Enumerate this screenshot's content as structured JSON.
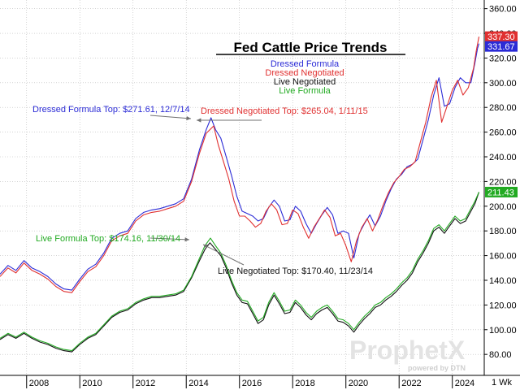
{
  "chart_data": {
    "type": "line",
    "title": "Fed Cattle Price Trends",
    "xlabel": "",
    "ylabel": "",
    "xlim": [
      2007.0,
      2025.2
    ],
    "ylim": [
      63,
      367
    ],
    "y_axis_side": "right",
    "grid": true,
    "frequency_label": "1 Wk",
    "x_tick_labels": [
      {
        "x": 2008,
        "label": "2008"
      },
      {
        "x": 2010,
        "label": "2010"
      },
      {
        "x": 2012,
        "label": "2012"
      },
      {
        "x": 2014,
        "label": "2014"
      },
      {
        "x": 2016,
        "label": "2016"
      },
      {
        "x": 2018,
        "label": "2018"
      },
      {
        "x": 2020,
        "label": "2020"
      },
      {
        "x": 2022,
        "label": "2022"
      },
      {
        "x": 2024,
        "label": "2024"
      }
    ],
    "y_ticks": [
      80,
      100,
      120,
      140,
      160,
      180,
      200,
      220,
      240,
      260,
      280,
      300,
      320,
      340,
      360
    ],
    "y_tick_labels": [
      "80.00",
      "100.00",
      "120.00",
      "140.00",
      "160.00",
      "180.00",
      "200.00",
      "220.00",
      "240.00",
      "260.00",
      "280.00",
      "300.00",
      "320.00",
      "340.00",
      "360.00"
    ],
    "legend_position": "top-center",
    "series": [
      {
        "name": "Dressed Formula",
        "color": "#2b2bd6",
        "last_value_label": "331.67",
        "x": [
          2007.0,
          2007.3,
          2007.6,
          2007.9,
          2008.2,
          2008.5,
          2008.8,
          2009.1,
          2009.4,
          2009.7,
          2010.0,
          2010.3,
          2010.6,
          2010.9,
          2011.2,
          2011.5,
          2011.8,
          2012.1,
          2012.4,
          2012.7,
          2013.0,
          2013.3,
          2013.6,
          2013.9,
          2014.2,
          2014.5,
          2014.75,
          2014.93,
          2015.1,
          2015.3,
          2015.5,
          2015.7,
          2015.9,
          2016.1,
          2016.3,
          2016.5,
          2016.7,
          2016.9,
          2017.1,
          2017.3,
          2017.5,
          2017.7,
          2017.9,
          2018.1,
          2018.3,
          2018.5,
          2018.7,
          2018.9,
          2019.1,
          2019.3,
          2019.5,
          2019.7,
          2019.9,
          2020.1,
          2020.3,
          2020.5,
          2020.7,
          2020.9,
          2021.1,
          2021.3,
          2021.5,
          2021.7,
          2021.9,
          2022.1,
          2022.3,
          2022.5,
          2022.7,
          2022.9,
          2023.1,
          2023.3,
          2023.5,
          2023.7,
          2023.9,
          2024.1,
          2024.3,
          2024.5,
          2024.7,
          2024.85,
          2024.95,
          2025.0
        ],
        "values": [
          145,
          152,
          148,
          156,
          150,
          147,
          143,
          137,
          133,
          132,
          141,
          149,
          153,
          162,
          174,
          178,
          180,
          190,
          195,
          197,
          198,
          200,
          202,
          206,
          222,
          246,
          262,
          271.6,
          262,
          255,
          240,
          225,
          208,
          196,
          194,
          192,
          188,
          190,
          199,
          205,
          200,
          188,
          189,
          200,
          196,
          186,
          178,
          186,
          193,
          199,
          193,
          178,
          180,
          178,
          158,
          178,
          186,
          193,
          184,
          192,
          204,
          214,
          222,
          226,
          232,
          234,
          238,
          254,
          270,
          290,
          304,
          281,
          283,
          296,
          304,
          300,
          300,
          316,
          328,
          331.67
        ]
      },
      {
        "name": "Dressed Negotiated",
        "color": "#e03030",
        "last_value_label": "337.30",
        "x": [
          2007.0,
          2007.3,
          2007.6,
          2007.9,
          2008.2,
          2008.5,
          2008.8,
          2009.1,
          2009.4,
          2009.7,
          2010.0,
          2010.3,
          2010.6,
          2010.9,
          2011.2,
          2011.5,
          2011.8,
          2012.1,
          2012.4,
          2012.7,
          2013.0,
          2013.3,
          2013.6,
          2013.9,
          2014.2,
          2014.5,
          2014.75,
          2015.03,
          2015.2,
          2015.4,
          2015.6,
          2015.8,
          2016.0,
          2016.2,
          2016.4,
          2016.6,
          2016.8,
          2017.0,
          2017.2,
          2017.4,
          2017.6,
          2017.8,
          2018.0,
          2018.2,
          2018.4,
          2018.6,
          2018.8,
          2019.0,
          2019.2,
          2019.4,
          2019.6,
          2019.8,
          2020.0,
          2020.2,
          2020.4,
          2020.6,
          2020.8,
          2021.0,
          2021.2,
          2021.4,
          2021.6,
          2021.8,
          2022.0,
          2022.2,
          2022.4,
          2022.6,
          2022.8,
          2023.0,
          2023.2,
          2023.4,
          2023.6,
          2023.8,
          2024.0,
          2024.2,
          2024.4,
          2024.6,
          2024.8,
          2024.9,
          2025.0
        ],
        "values": [
          143,
          150,
          146,
          154,
          148,
          145,
          141,
          135,
          131,
          130,
          139,
          147,
          151,
          160,
          172,
          176,
          178,
          188,
          193,
          195,
          196,
          198,
          200,
          204,
          220,
          243,
          259,
          265.04,
          250,
          236,
          222,
          204,
          192,
          192,
          188,
          183,
          186,
          196,
          202,
          197,
          185,
          186,
          197,
          194,
          183,
          174,
          183,
          190,
          197,
          191,
          176,
          178,
          168,
          155,
          172,
          183,
          190,
          180,
          189,
          201,
          211,
          219,
          224,
          230,
          232,
          236,
          252,
          268,
          288,
          302,
          268,
          281,
          294,
          302,
          290,
          296,
          312,
          326,
          337.3
        ]
      },
      {
        "name": "Live Negotiated",
        "color": "#111111",
        "last_value_label": "",
        "x": [
          2007.0,
          2007.3,
          2007.6,
          2007.9,
          2008.2,
          2008.5,
          2008.8,
          2009.1,
          2009.4,
          2009.7,
          2010.0,
          2010.3,
          2010.6,
          2010.9,
          2011.2,
          2011.5,
          2011.8,
          2012.1,
          2012.4,
          2012.7,
          2013.0,
          2013.3,
          2013.6,
          2013.9,
          2014.2,
          2014.5,
          2014.7,
          2014.89,
          2015.1,
          2015.3,
          2015.5,
          2015.7,
          2015.9,
          2016.1,
          2016.3,
          2016.5,
          2016.7,
          2016.9,
          2017.1,
          2017.3,
          2017.5,
          2017.7,
          2017.9,
          2018.1,
          2018.3,
          2018.5,
          2018.7,
          2018.9,
          2019.1,
          2019.3,
          2019.5,
          2019.7,
          2019.9,
          2020.1,
          2020.3,
          2020.5,
          2020.7,
          2020.9,
          2021.1,
          2021.3,
          2021.5,
          2021.7,
          2021.9,
          2022.1,
          2022.3,
          2022.5,
          2022.7,
          2022.9,
          2023.1,
          2023.3,
          2023.5,
          2023.7,
          2023.9,
          2024.1,
          2024.3,
          2024.5,
          2024.7,
          2024.85,
          2025.0
        ],
        "values": [
          92,
          96,
          93,
          97,
          93,
          90,
          88,
          85,
          83,
          82,
          88,
          93,
          96,
          103,
          110,
          114,
          116,
          121,
          124,
          126,
          126,
          127,
          128,
          131,
          142,
          156,
          165,
          170.4,
          165,
          160,
          150,
          138,
          128,
          122,
          121,
          113,
          105,
          108,
          120,
          128,
          121,
          113,
          114,
          122,
          118,
          112,
          108,
          113,
          116,
          118,
          113,
          107,
          106,
          103,
          98,
          104,
          109,
          113,
          118,
          120,
          124,
          127,
          131,
          136,
          140,
          146,
          155,
          162,
          170,
          180,
          183,
          178,
          184,
          190,
          186,
          188,
          196,
          202,
          211.43
        ]
      },
      {
        "name": "Live Formula",
        "color": "#22aa22",
        "last_value_label": "211.43",
        "x": [
          2007.0,
          2007.3,
          2007.6,
          2007.9,
          2008.2,
          2008.5,
          2008.8,
          2009.1,
          2009.4,
          2009.7,
          2010.0,
          2010.3,
          2010.6,
          2010.9,
          2011.2,
          2011.5,
          2011.8,
          2012.1,
          2012.4,
          2012.7,
          2013.0,
          2013.3,
          2013.6,
          2013.9,
          2014.2,
          2014.5,
          2014.7,
          2014.91,
          2015.1,
          2015.3,
          2015.5,
          2015.7,
          2015.9,
          2016.1,
          2016.3,
          2016.5,
          2016.7,
          2016.9,
          2017.1,
          2017.3,
          2017.5,
          2017.7,
          2017.9,
          2018.1,
          2018.3,
          2018.5,
          2018.7,
          2018.9,
          2019.1,
          2019.3,
          2019.5,
          2019.7,
          2019.9,
          2020.1,
          2020.3,
          2020.5,
          2020.7,
          2020.9,
          2021.1,
          2021.3,
          2021.5,
          2021.7,
          2021.9,
          2022.1,
          2022.3,
          2022.5,
          2022.7,
          2022.9,
          2023.1,
          2023.3,
          2023.5,
          2023.7,
          2023.9,
          2024.1,
          2024.3,
          2024.5,
          2024.7,
          2024.85,
          2025.0
        ],
        "values": [
          93,
          97,
          94,
          98,
          94,
          91,
          89,
          86,
          84,
          83,
          89,
          94,
          97,
          104,
          111,
          115,
          117,
          122,
          125,
          127,
          127,
          128,
          129,
          132,
          143,
          158,
          168,
          174.16,
          168,
          162,
          152,
          140,
          130,
          124,
          123,
          115,
          107,
          110,
          122,
          130,
          123,
          115,
          116,
          124,
          120,
          114,
          110,
          115,
          118,
          120,
          115,
          109,
          108,
          105,
          100,
          106,
          111,
          115,
          120,
          122,
          126,
          129,
          133,
          138,
          142,
          148,
          157,
          164,
          172,
          182,
          185,
          180,
          186,
          192,
          188,
          190,
          198,
          204,
          211.43
        ]
      }
    ],
    "annotations": [
      {
        "text": "Dressed Formula Top: $271.61, 12/7/14",
        "color": "#2b2bd6",
        "x": 2014.93,
        "y": 271.61
      },
      {
        "text": "Dressed Negotiated Top: $265.04, 1/11/15",
        "color": "#e03030",
        "x": 2015.03,
        "y": 265.04
      },
      {
        "text": "Live Formula Top: $174.16, 11/30/14",
        "color": "#22aa22",
        "x": 2014.91,
        "y": 174.16
      },
      {
        "text": "Live Negotiated Top: $170.40, 11/23/14",
        "color": "#111111",
        "x": 2014.89,
        "y": 170.4
      }
    ]
  },
  "watermark": {
    "brand": "ProphetX",
    "sub": "powered by DTN"
  }
}
